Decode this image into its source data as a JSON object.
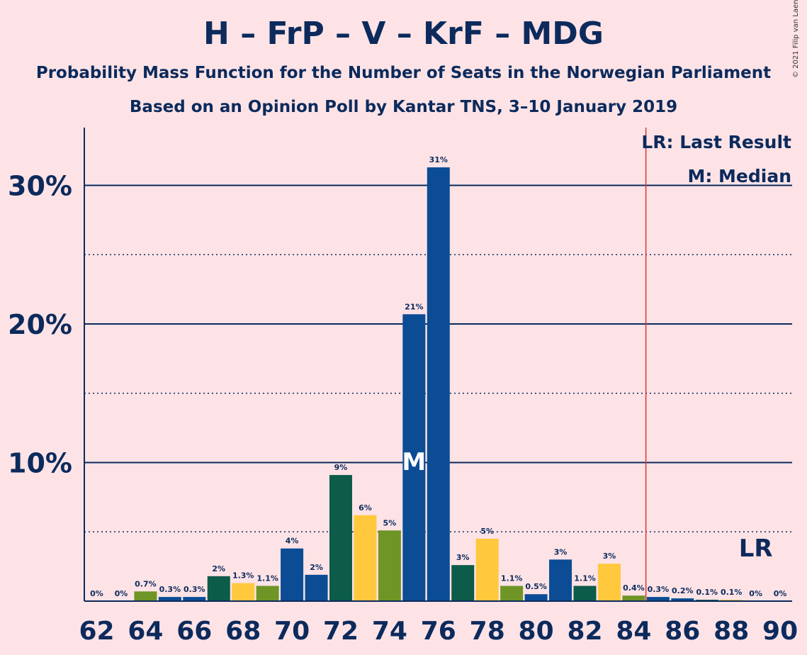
{
  "title": "H – FrP – V – KrF – MDG",
  "subtitle1": "Probability Mass Function for the Number of Seats in the Norwegian Parliament",
  "subtitle2": "Based on an Opinion Poll by Kantar TNS, 3–10 January 2019",
  "copyright": "© 2021 Filip van Laenen",
  "colors": {
    "background": "#fde3e6",
    "text": "#0c2a5c",
    "H": "#0b4c94",
    "FrP": "#ffc83d",
    "V": "#0d5b49",
    "KrF": "#6e9526",
    "last_result_line": "#e0303a"
  },
  "chart_data": {
    "type": "bar",
    "x": [
      62,
      63,
      64,
      65,
      66,
      67,
      68,
      69,
      70,
      71,
      72,
      73,
      74,
      75,
      76,
      77,
      78,
      79,
      80,
      81,
      82,
      83,
      84,
      85,
      86,
      87,
      88,
      89,
      90
    ],
    "values": [
      0,
      0,
      0.7,
      0.3,
      0.3,
      1.8,
      1.3,
      1.1,
      3.8,
      1.9,
      9.1,
      6.2,
      5.1,
      20.7,
      31.3,
      2.6,
      4.5,
      1.1,
      0.5,
      3.0,
      1.1,
      2.7,
      0.4,
      0.3,
      0.2,
      0.1,
      0.1,
      0,
      0
    ],
    "labels": [
      "0%",
      "0%",
      "0.7%",
      "0.3%",
      "0.3%",
      "2%",
      "1.3%",
      "1.1%",
      "4%",
      "2%",
      "9%",
      "6%",
      "5%",
      "21%",
      "31%",
      "3%",
      "5%",
      "1.1%",
      "0.5%",
      "3%",
      "1.1%",
      "3%",
      "0.4%",
      "0.3%",
      "0.2%",
      "0.1%",
      "0.1%",
      "0%",
      "0%"
    ],
    "bar_colors": [
      "#0b4c94",
      "#ffc83d",
      "#6e9526",
      "#0b4c94",
      "#0b4c94",
      "#0d5b49",
      "#ffc83d",
      "#6e9526",
      "#0b4c94",
      "#0b4c94",
      "#0d5b49",
      "#ffc83d",
      "#6e9526",
      "#0b4c94",
      "#0b4c94",
      "#0d5b49",
      "#ffc83d",
      "#6e9526",
      "#0b4c94",
      "#0b4c94",
      "#0d5b49",
      "#ffc83d",
      "#6e9526",
      "#0b4c94",
      "#0b4c94",
      "#0d5b49",
      "#ffc83d",
      "#6e9526",
      "#0b4c94"
    ],
    "x_ticks": [
      62,
      64,
      66,
      68,
      70,
      72,
      74,
      76,
      78,
      80,
      82,
      84,
      86,
      88,
      90
    ],
    "y_ticks": [
      {
        "value": 10,
        "label": "10%"
      },
      {
        "value": 20,
        "label": "20%"
      },
      {
        "value": 30,
        "label": "30%"
      }
    ],
    "dotted_gridlines": [
      5,
      15,
      25
    ],
    "ylim": [
      0,
      34
    ],
    "median": 75,
    "median_label": "M",
    "last_result": 89,
    "last_result_marker": 84.5,
    "last_result_label": "LR",
    "legend": [
      "LR: Last Result",
      "M: Median"
    ],
    "legend_position": "top-right",
    "grid": true
  }
}
